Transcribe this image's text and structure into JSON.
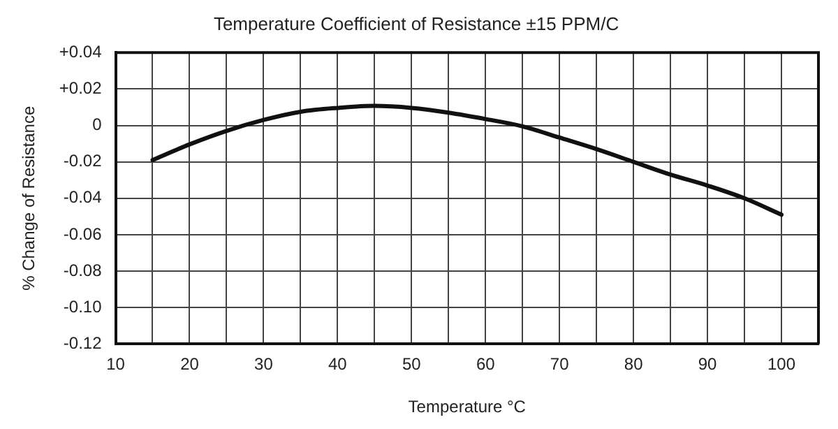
{
  "chart_data": {
    "type": "line",
    "title": "Temperature Coefficient of Resistance ±15 PPM/C",
    "xlabel": "Temperature °C",
    "ylabel": "% Change of Resistance",
    "x": [
      15,
      20,
      25,
      30,
      35,
      40,
      45,
      50,
      55,
      60,
      65,
      70,
      75,
      80,
      85,
      90,
      95,
      100
    ],
    "series": [
      {
        "color": "#111111",
        "values": [
          -0.019,
          -0.0104,
          -0.003,
          0.003,
          0.0075,
          0.0096,
          0.0107,
          0.0096,
          0.007,
          0.0035,
          -0.0005,
          -0.0067,
          -0.013,
          -0.02,
          -0.027,
          -0.033,
          -0.04,
          -0.049
        ]
      }
    ],
    "xlim": [
      10,
      105
    ],
    "xticks": [
      10,
      {
        "value": 15,
        "label": null
      },
      20,
      {
        "value": 25,
        "label": null
      },
      30,
      {
        "value": 35,
        "label": null
      },
      40,
      {
        "value": 45,
        "label": null
      },
      50,
      {
        "value": 55,
        "label": null
      },
      60,
      {
        "value": 65,
        "label": null
      },
      70,
      {
        "value": 75,
        "label": null
      },
      80,
      {
        "value": 85,
        "label": null
      },
      90,
      {
        "value": 95,
        "label": null
      },
      100
    ],
    "ylim": [
      -0.12,
      0.04
    ],
    "yticks": [
      {
        "value": 0.04,
        "label": "+0.04"
      },
      {
        "value": 0.02,
        "label": "+0.02"
      },
      0,
      {
        "value": -0.02,
        "label": "-0.02"
      },
      {
        "value": -0.04,
        "label": "-0.04"
      },
      {
        "value": -0.06,
        "label": "-0.06"
      },
      {
        "value": -0.08,
        "label": "-0.08"
      },
      {
        "value": -0.1,
        "label": "-0.10"
      },
      {
        "value": -0.12,
        "label": "-0.12"
      }
    ],
    "grid": true,
    "legend": false,
    "marker": "none",
    "line_style": "solid"
  }
}
